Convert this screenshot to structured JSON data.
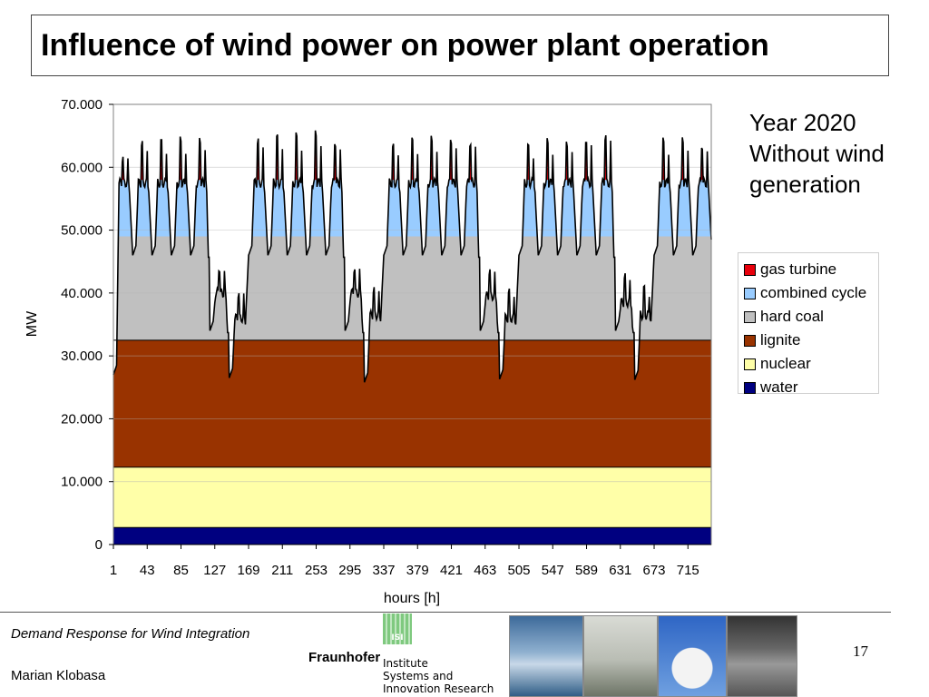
{
  "slide": {
    "title": "Influence of wind power on power plant operation",
    "annotation": [
      "Year 2020",
      "Without wind",
      "generation"
    ],
    "page_number": "17"
  },
  "footer": {
    "presentation_title": "Demand Response for Wind Integration",
    "author": "Marian Klobasa",
    "logo_name": "Fraunhofer",
    "logo_mark_text": "ISI",
    "institute_lines": [
      "Institute",
      "Systems and",
      "Innovation Research"
    ],
    "photos": [
      "wind-turbines-photo",
      "power-lines-photo",
      "cooling-tower-photo",
      "trading-floor-photo"
    ]
  },
  "chart_data": {
    "type": "area",
    "stacked": true,
    "xlabel": "hours [h]",
    "ylabel": "MW",
    "ylim": [
      0,
      70000
    ],
    "xlim": [
      1,
      744
    ],
    "x_tick_labels": [
      "1",
      "43",
      "85",
      "127",
      "169",
      "211",
      "253",
      "295",
      "337",
      "379",
      "421",
      "463",
      "505",
      "547",
      "589",
      "631",
      "673",
      "715"
    ],
    "x_tick_values": [
      1,
      43,
      85,
      127,
      169,
      211,
      253,
      295,
      337,
      379,
      421,
      463,
      505,
      547,
      589,
      631,
      673,
      715
    ],
    "y_tick_labels": [
      "0",
      "10.000",
      "20.000",
      "30.000",
      "40.000",
      "50.000",
      "60.000",
      "70.000"
    ],
    "y_tick_values": [
      0,
      10000,
      20000,
      30000,
      40000,
      50000,
      60000,
      70000
    ],
    "grid": "horizontal",
    "legend_position": "right",
    "series": [
      {
        "name": "gas turbine",
        "color": "#e8000b",
        "band": [
          58000,
          66000
        ]
      },
      {
        "name": "combined cycle",
        "color": "#99ccff",
        "band": [
          49000,
          58000
        ]
      },
      {
        "name": "hard coal",
        "color": "#c0c0c0",
        "band": [
          32500,
          49000
        ]
      },
      {
        "name": "lignite",
        "color": "#993300",
        "band": [
          12300,
          32500
        ]
      },
      {
        "name": "nuclear",
        "color": "#ffffa8",
        "band": [
          2700,
          12300
        ]
      },
      {
        "name": "water",
        "color": "#000080",
        "band": [
          0,
          2700
        ]
      }
    ],
    "baseload_levels": {
      "water": 2700,
      "nuclear": 12300,
      "lignite": 32500,
      "hard_coal_max": 49000,
      "combined_cycle_max": 58000
    },
    "demand_profile": {
      "line_color": "#000000",
      "weekday_peaks_MW": [
        61500,
        63500,
        63800,
        64200,
        64500,
        64000,
        64500,
        64800,
        65500,
        64000,
        63000,
        64000,
        64500,
        64500,
        64000,
        63000,
        64000,
        64000,
        64500,
        65000,
        64000,
        64500,
        63500
      ],
      "weekend_peaks_MW": [
        44000,
        40000,
        44000,
        40500,
        43500,
        40000,
        42500,
        40500,
        42000,
        40000
      ],
      "weekday_night_min_MW": 46000,
      "weekend_night_min_MW": [
        26500,
        25800,
        26300,
        26200,
        26400
      ]
    }
  }
}
